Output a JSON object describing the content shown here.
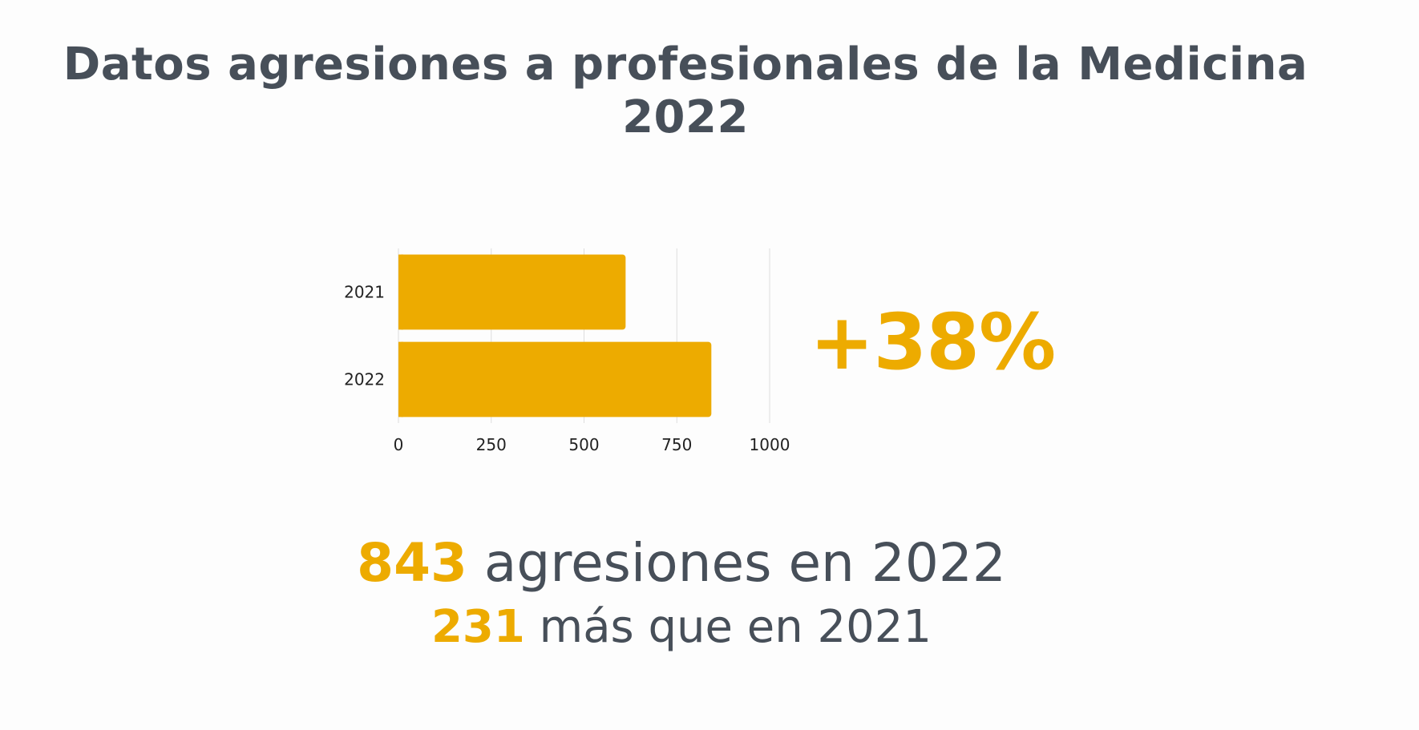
{
  "title": {
    "line1": "Datos agresiones a profesionales de la Medicina",
    "line2": "2022"
  },
  "colors": {
    "accent": "#edab00",
    "text": "#474f59",
    "grid": "#dddddd",
    "background": "#fdfdfd"
  },
  "chart_data": {
    "type": "bar",
    "orientation": "horizontal",
    "categories": [
      "2021",
      "2022"
    ],
    "values": [
      612,
      843
    ],
    "xlim": [
      0,
      1000
    ],
    "xticks": [
      "0",
      "250",
      "500",
      "750",
      "1000"
    ],
    "grid": true,
    "legend": "none"
  },
  "callout": {
    "percent": "+38%"
  },
  "summary": {
    "line1_number": "843",
    "line1_text": " agresiones en 2022",
    "line2_number": "231",
    "line2_text": " más que en 2021"
  }
}
